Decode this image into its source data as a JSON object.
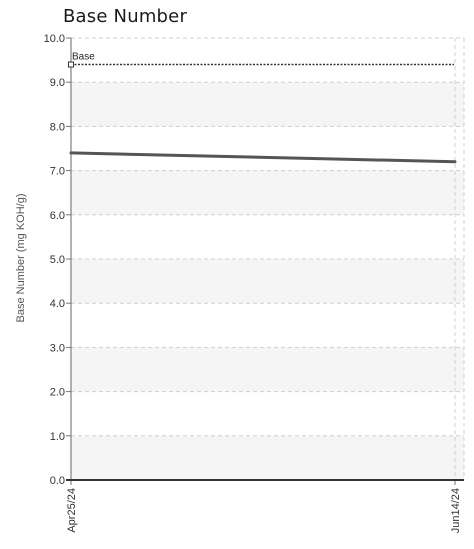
{
  "chart_data": {
    "type": "line",
    "title": "Base Number",
    "ylabel": "Base Number (mg KOH/g)",
    "xlabel": "",
    "ylim": [
      0,
      10
    ],
    "y_ticks": [
      "0.0",
      "1.0",
      "2.0",
      "3.0",
      "4.0",
      "5.0",
      "6.0",
      "7.0",
      "8.0",
      "9.0",
      "10.0"
    ],
    "x_ticks": [
      "Apr25/24",
      "Jun14/24"
    ],
    "series": [
      {
        "values": [
          7.4,
          7.2
        ],
        "color": "#555555"
      }
    ],
    "reference_lines": [
      {
        "label": "Base",
        "value": 9.4,
        "style": "dotted",
        "color": "#333333"
      }
    ],
    "grid": true,
    "band_colors": [
      "#f5f5f5",
      "#ffffff"
    ]
  }
}
